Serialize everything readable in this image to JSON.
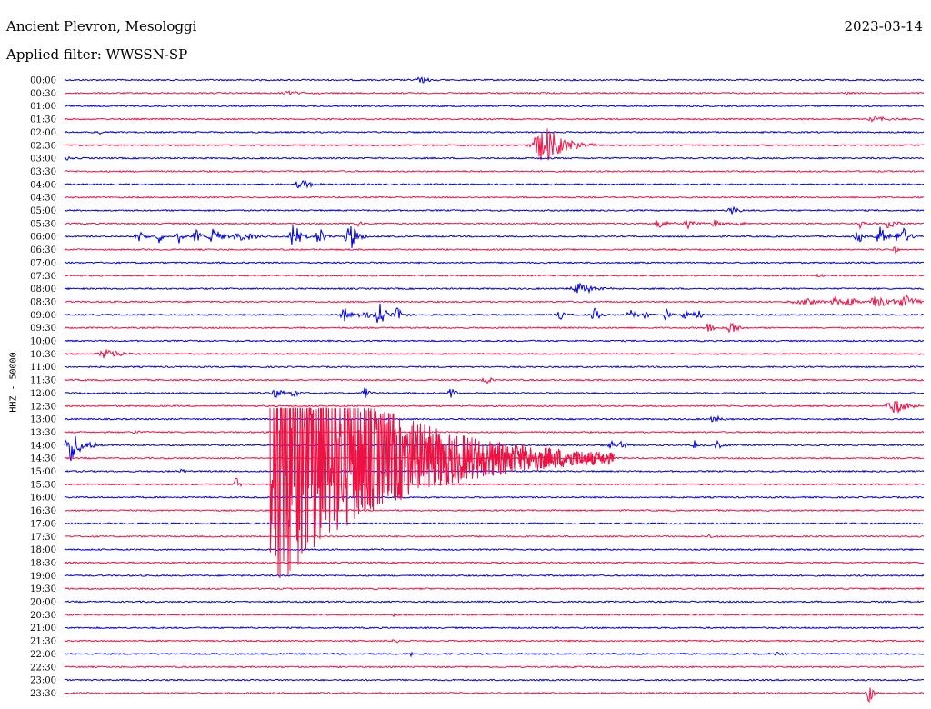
{
  "header": {
    "station": "Ancient Plevron, Mesologgi",
    "filter": "Applied filter: WWSSN-SP",
    "date": "2023-03-14"
  },
  "chart_data": {
    "type": "line",
    "title": "Ancient Plevron, Mesologgi",
    "subtitle": "Applied filter: WWSSN-SP",
    "date": "2023-03-14",
    "ylabel": "HHZ - 50000",
    "colors": [
      "#0000dd",
      "#ee1144"
    ],
    "rows": [
      "00:00",
      "00:30",
      "01:00",
      "01:30",
      "02:00",
      "02:30",
      "03:00",
      "03:30",
      "04:00",
      "04:30",
      "05:00",
      "05:30",
      "06:00",
      "06:30",
      "07:00",
      "07:30",
      "08:00",
      "08:30",
      "09:00",
      "09:30",
      "10:00",
      "10:30",
      "11:00",
      "11:30",
      "12:00",
      "12:30",
      "13:00",
      "13:30",
      "14:00",
      "14:30",
      "15:00",
      "15:30",
      "16:00",
      "16:30",
      "17:00",
      "17:30",
      "18:00",
      "18:30",
      "19:00",
      "19:30",
      "20:00",
      "20:30",
      "21:00",
      "21:30",
      "22:00",
      "22:30",
      "23:00",
      "23:30"
    ],
    "x_minutes_per_row": 30,
    "events": [
      {
        "row": 0,
        "minute": 12.5,
        "amp": 4,
        "dur": 0.8
      },
      {
        "row": 1,
        "minute": 8,
        "amp": 2,
        "dur": 1.5
      },
      {
        "row": 1,
        "minute": 27.3,
        "amp": 2,
        "dur": 0.4
      },
      {
        "row": 3,
        "minute": 28.3,
        "amp": 3,
        "dur": 1.2
      },
      {
        "row": 4,
        "minute": 1.2,
        "amp": 3,
        "dur": 0.2
      },
      {
        "row": 5,
        "minute": 16.8,
        "amp": 22,
        "dur": 1.8
      },
      {
        "row": 6,
        "minute": 0.1,
        "amp": 3,
        "dur": 0.3
      },
      {
        "row": 8,
        "minute": 8.3,
        "amp": 6,
        "dur": 0.9
      },
      {
        "row": 10,
        "minute": 23.3,
        "amp": 6,
        "dur": 0.5
      },
      {
        "row": 11,
        "minute": 10.2,
        "amp": 5,
        "dur": 0.5
      },
      {
        "row": 11,
        "minute": 20.8,
        "amp": 7,
        "dur": 0.7
      },
      {
        "row": 11,
        "minute": 21.8,
        "amp": 7,
        "dur": 0.6
      },
      {
        "row": 11,
        "minute": 22.7,
        "amp": 5,
        "dur": 0.6
      },
      {
        "row": 11,
        "minute": 23.6,
        "amp": 2,
        "dur": 0.6
      },
      {
        "row": 11,
        "minute": 27.8,
        "amp": 6,
        "dur": 0.5
      },
      {
        "row": 11,
        "minute": 28.8,
        "amp": 7,
        "dur": 0.6
      },
      {
        "row": 12,
        "minute": 2.6,
        "amp": 8,
        "dur": 0.5
      },
      {
        "row": 12,
        "minute": 3.3,
        "amp": 7,
        "dur": 0.5
      },
      {
        "row": 12,
        "minute": 4.0,
        "amp": 7,
        "dur": 0.5
      },
      {
        "row": 12,
        "minute": 4.6,
        "amp": 8,
        "dur": 0.5
      },
      {
        "row": 12,
        "minute": 5.2,
        "amp": 9,
        "dur": 0.8
      },
      {
        "row": 12,
        "minute": 6.0,
        "amp": 4,
        "dur": 1.5
      },
      {
        "row": 12,
        "minute": 6.4,
        "amp": 3,
        "dur": 1.6
      },
      {
        "row": 12,
        "minute": 8.0,
        "amp": 16,
        "dur": 0.6
      },
      {
        "row": 12,
        "minute": 8.9,
        "amp": 10,
        "dur": 0.6
      },
      {
        "row": 12,
        "minute": 10.0,
        "amp": 16,
        "dur": 0.7
      },
      {
        "row": 12,
        "minute": 27.7,
        "amp": 8,
        "dur": 0.5
      },
      {
        "row": 12,
        "minute": 28.5,
        "amp": 13,
        "dur": 0.6
      },
      {
        "row": 12,
        "minute": 29.2,
        "amp": 16,
        "dur": 0.6
      },
      {
        "row": 13,
        "minute": 29.0,
        "amp": 4,
        "dur": 0.3
      },
      {
        "row": 15,
        "minute": 26.3,
        "amp": 2,
        "dur": 0.6
      },
      {
        "row": 16,
        "minute": 18.0,
        "amp": 7,
        "dur": 1.2
      },
      {
        "row": 17,
        "minute": 26.9,
        "amp": 7,
        "dur": 0.6
      },
      {
        "row": 17,
        "minute": 27.4,
        "amp": 7,
        "dur": 0.6
      },
      {
        "row": 17,
        "minute": 28.3,
        "amp": 8,
        "dur": 0.6
      },
      {
        "row": 17,
        "minute": 26.0,
        "amp": 3,
        "dur": 2.4
      },
      {
        "row": 17,
        "minute": 28.6,
        "amp": 5,
        "dur": 1.2
      },
      {
        "row": 17,
        "minute": 29.4,
        "amp": 8,
        "dur": 1.0
      },
      {
        "row": 18,
        "minute": 9.8,
        "amp": 8,
        "dur": 0.6
      },
      {
        "row": 18,
        "minute": 10.5,
        "amp": 4,
        "dur": 0.9
      },
      {
        "row": 18,
        "minute": 11.0,
        "amp": 15,
        "dur": 0.5
      },
      {
        "row": 18,
        "minute": 11.6,
        "amp": 10,
        "dur": 0.5
      },
      {
        "row": 18,
        "minute": 17.3,
        "amp": 8,
        "dur": 0.5
      },
      {
        "row": 18,
        "minute": 18.5,
        "amp": 8,
        "dur": 0.5
      },
      {
        "row": 18,
        "minute": 19.8,
        "amp": 9,
        "dur": 0.5
      },
      {
        "row": 18,
        "minute": 20.3,
        "amp": 5,
        "dur": 0.5
      },
      {
        "row": 18,
        "minute": 21.0,
        "amp": 7,
        "dur": 0.5
      },
      {
        "row": 18,
        "minute": 21.7,
        "amp": 6,
        "dur": 0.5
      },
      {
        "row": 18,
        "minute": 22.1,
        "amp": 7,
        "dur": 0.5
      },
      {
        "row": 19,
        "minute": 22.5,
        "amp": 9,
        "dur": 0.5
      },
      {
        "row": 19,
        "minute": 23.3,
        "amp": 9,
        "dur": 0.5
      },
      {
        "row": 21,
        "minute": 1.5,
        "amp": 7,
        "dur": 1.2
      },
      {
        "row": 23,
        "minute": 14.7,
        "amp": 8,
        "dur": 0.4
      },
      {
        "row": 24,
        "minute": 7.4,
        "amp": 6,
        "dur": 0.6
      },
      {
        "row": 24,
        "minute": 8.0,
        "amp": 6,
        "dur": 0.5
      },
      {
        "row": 24,
        "minute": 10.5,
        "amp": 7,
        "dur": 0.4
      },
      {
        "row": 24,
        "minute": 13.5,
        "amp": 8,
        "dur": 0.4
      },
      {
        "row": 25,
        "minute": 29.0,
        "amp": 10,
        "dur": 1.0
      },
      {
        "row": 26,
        "minute": 22.7,
        "amp": 5,
        "dur": 0.6
      },
      {
        "row": 27,
        "minute": 2.5,
        "amp": 2,
        "dur": 0.8
      },
      {
        "row": 28,
        "minute": 0.2,
        "amp": 18,
        "dur": 1.2
      },
      {
        "row": 28,
        "minute": 19.1,
        "amp": 5,
        "dur": 0.5
      },
      {
        "row": 28,
        "minute": 19.5,
        "amp": 6,
        "dur": 0.5
      },
      {
        "row": 28,
        "minute": 22.0,
        "amp": 5,
        "dur": 0.4
      },
      {
        "row": 28,
        "minute": 22.8,
        "amp": 5,
        "dur": 0.4
      },
      {
        "row": 30,
        "minute": 4.1,
        "amp": 3,
        "dur": 0.4
      },
      {
        "row": 30,
        "minute": 11.1,
        "amp": 3,
        "dur": 0.4
      },
      {
        "row": 31,
        "minute": 6.0,
        "amp": 14,
        "dur": 0.3
      },
      {
        "row": 35,
        "minute": 22.5,
        "amp": 2,
        "dur": 0.5
      },
      {
        "row": 41,
        "minute": 11.5,
        "amp": 2,
        "dur": 0.4
      },
      {
        "row": 41,
        "minute": 13.7,
        "amp": 2,
        "dur": 0.4
      },
      {
        "row": 43,
        "minute": 11.5,
        "amp": 2,
        "dur": 0.7
      },
      {
        "row": 44,
        "minute": 12.1,
        "amp": 3,
        "dur": 0.2
      },
      {
        "row": 44,
        "minute": 24.9,
        "amp": 2,
        "dur": 1.0
      },
      {
        "row": 47,
        "minute": 28.1,
        "amp": 12,
        "dur": 0.4
      }
    ],
    "quake": {
      "row": 29,
      "minute": 7.2,
      "amp": 145,
      "dur": 12
    }
  }
}
